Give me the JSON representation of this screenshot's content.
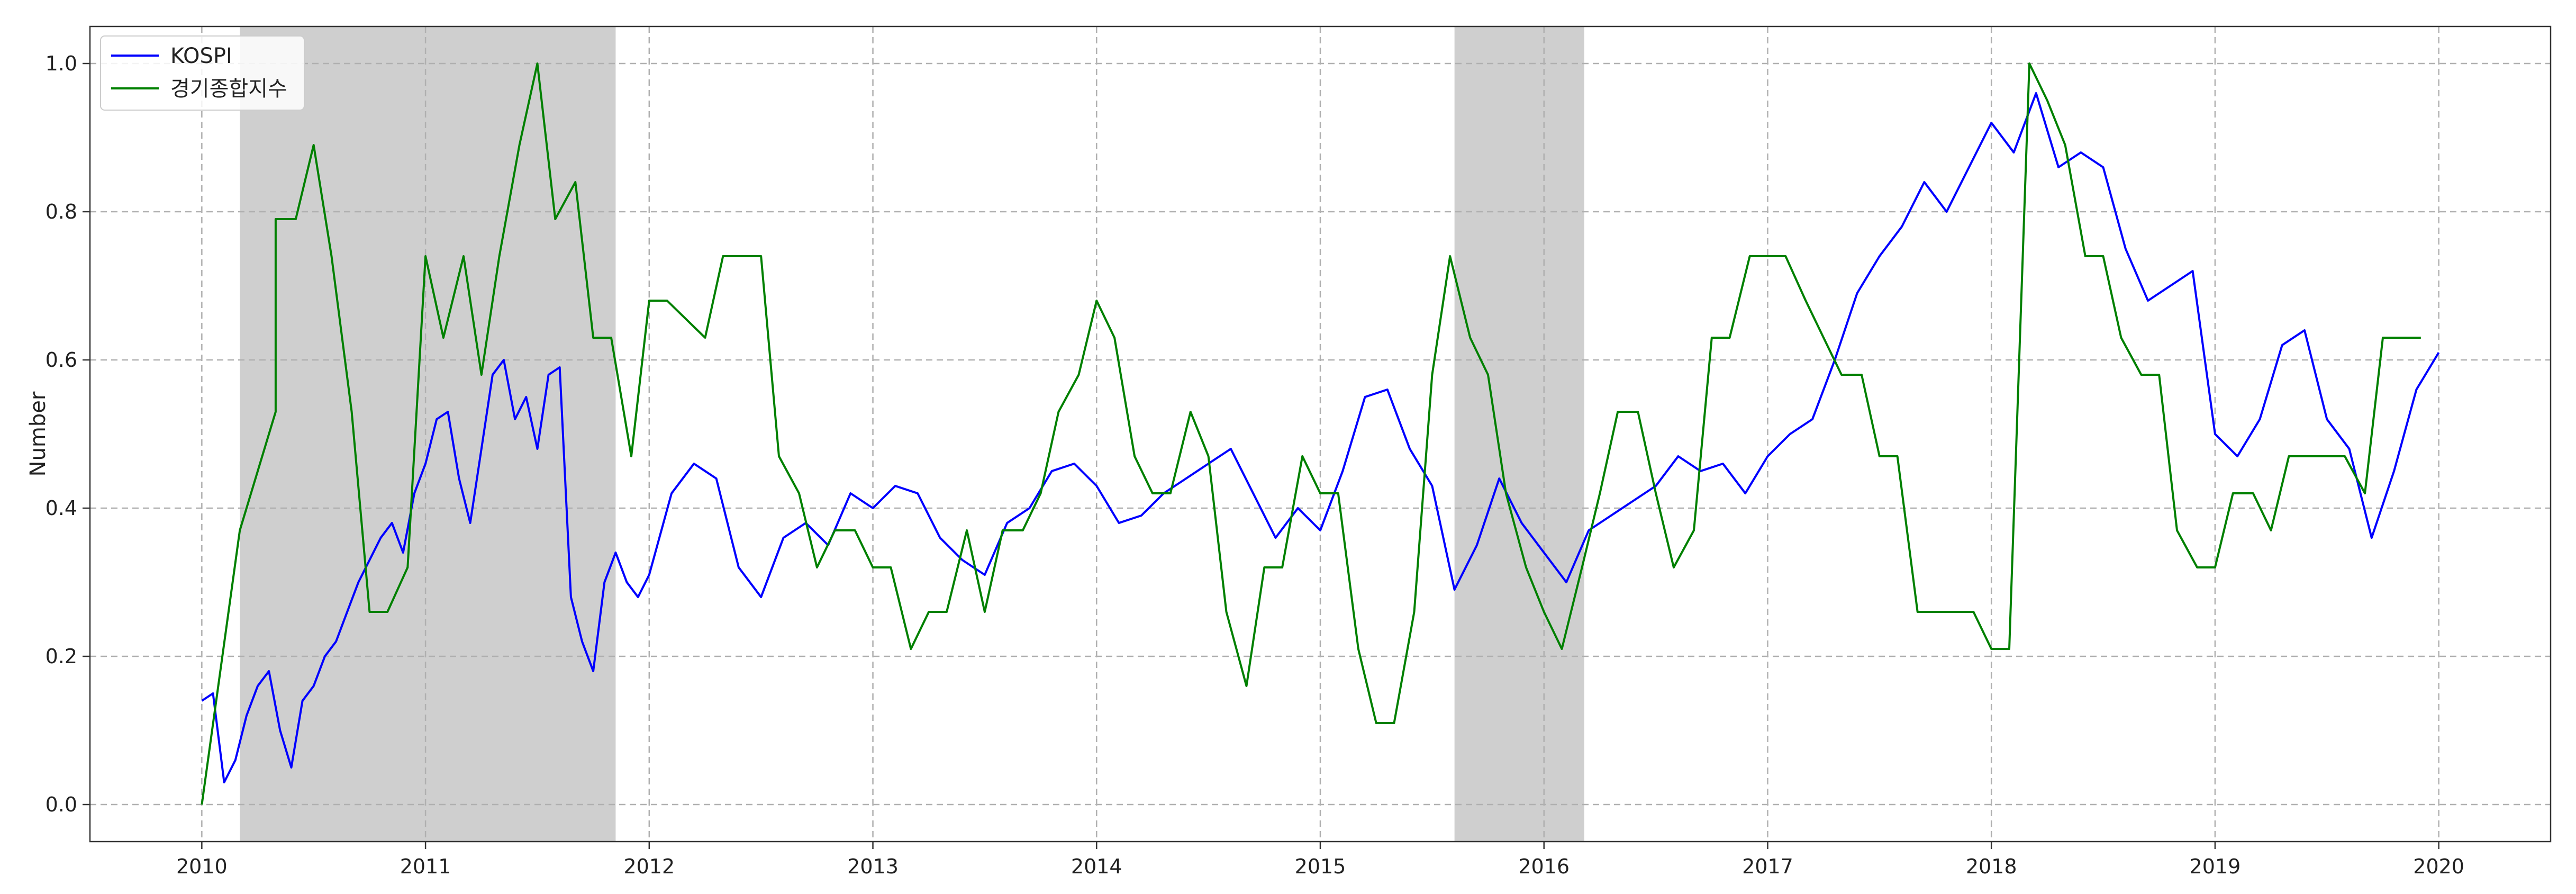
{
  "chart_data": {
    "type": "line",
    "title": "",
    "xlabel": "",
    "ylabel": "Number",
    "xlim": [
      2009.5,
      2020.5
    ],
    "ylim": [
      -0.05,
      1.05
    ],
    "x_ticks": [
      "2010",
      "2011",
      "2012",
      "2013",
      "2014",
      "2015",
      "2016",
      "2017",
      "2018",
      "2019",
      "2020"
    ],
    "y_ticks": [
      "0.0",
      "0.2",
      "0.4",
      "0.6",
      "0.8",
      "1.0"
    ],
    "grid": true,
    "legend_position": "top-left",
    "shaded_periods": [
      {
        "x": [
          2010.17,
          2011.85
        ]
      },
      {
        "x": [
          2015.6,
          2016.18
        ]
      }
    ],
    "series": [
      {
        "name": "KOSPI",
        "color": "#0000ff",
        "x": [
          2010.0,
          2010.05,
          2010.1,
          2010.15,
          2010.2,
          2010.25,
          2010.3,
          2010.35,
          2010.4,
          2010.45,
          2010.5,
          2010.55,
          2010.6,
          2010.65,
          2010.7,
          2010.75,
          2010.8,
          2010.85,
          2010.9,
          2010.95,
          2011.0,
          2011.05,
          2011.1,
          2011.15,
          2011.2,
          2011.25,
          2011.3,
          2011.35,
          2011.4,
          2011.45,
          2011.5,
          2011.55,
          2011.6,
          2011.65,
          2011.7,
          2011.75,
          2011.8,
          2011.85,
          2011.9,
          2011.95,
          2012.0,
          2012.1,
          2012.2,
          2012.3,
          2012.4,
          2012.5,
          2012.6,
          2012.7,
          2012.8,
          2012.9,
          2013.0,
          2013.1,
          2013.2,
          2013.3,
          2013.4,
          2013.5,
          2013.6,
          2013.7,
          2013.8,
          2013.9,
          2014.0,
          2014.1,
          2014.2,
          2014.3,
          2014.4,
          2014.5,
          2014.6,
          2014.7,
          2014.8,
          2014.9,
          2015.0,
          2015.1,
          2015.2,
          2015.3,
          2015.4,
          2015.5,
          2015.6,
          2015.7,
          2015.8,
          2015.9,
          2016.0,
          2016.1,
          2016.2,
          2016.3,
          2016.4,
          2016.5,
          2016.6,
          2016.7,
          2016.8,
          2016.9,
          2017.0,
          2017.1,
          2017.2,
          2017.3,
          2017.4,
          2017.5,
          2017.6,
          2017.7,
          2017.8,
          2017.9,
          2018.0,
          2018.1,
          2018.2,
          2018.3,
          2018.4,
          2018.5,
          2018.6,
          2018.7,
          2018.8,
          2018.9,
          2019.0,
          2019.1,
          2019.2,
          2019.3,
          2019.4,
          2019.5,
          2019.6,
          2019.7,
          2019.8,
          2019.9,
          2020.0
        ],
        "y": [
          0.14,
          0.15,
          0.03,
          0.06,
          0.12,
          0.16,
          0.18,
          0.1,
          0.05,
          0.14,
          0.16,
          0.2,
          0.22,
          0.26,
          0.3,
          0.33,
          0.36,
          0.38,
          0.34,
          0.42,
          0.46,
          0.52,
          0.53,
          0.44,
          0.38,
          0.48,
          0.58,
          0.6,
          0.52,
          0.55,
          0.48,
          0.58,
          0.59,
          0.28,
          0.22,
          0.18,
          0.3,
          0.34,
          0.3,
          0.28,
          0.31,
          0.42,
          0.46,
          0.44,
          0.32,
          0.28,
          0.36,
          0.38,
          0.35,
          0.42,
          0.4,
          0.43,
          0.42,
          0.36,
          0.33,
          0.31,
          0.38,
          0.4,
          0.45,
          0.46,
          0.43,
          0.38,
          0.39,
          0.42,
          0.44,
          0.46,
          0.48,
          0.42,
          0.36,
          0.4,
          0.37,
          0.45,
          0.55,
          0.56,
          0.48,
          0.43,
          0.29,
          0.35,
          0.44,
          0.38,
          0.34,
          0.3,
          0.37,
          0.39,
          0.41,
          0.43,
          0.47,
          0.45,
          0.46,
          0.42,
          0.47,
          0.5,
          0.52,
          0.6,
          0.69,
          0.74,
          0.78,
          0.84,
          0.8,
          0.86,
          0.92,
          0.88,
          0.96,
          0.86,
          0.88,
          0.86,
          0.75,
          0.68,
          0.7,
          0.72,
          0.5,
          0.47,
          0.52,
          0.62,
          0.64,
          0.52,
          0.48,
          0.36,
          0.45,
          0.56,
          0.61
        ]
      },
      {
        "name": "경기종합지수",
        "color": "#008000",
        "x": [
          2010.0,
          2010.17,
          2010.33,
          2010.33,
          2010.42,
          2010.5,
          2010.58,
          2010.67,
          2010.75,
          2010.83,
          2010.92,
          2011.0,
          2011.08,
          2011.17,
          2011.25,
          2011.33,
          2011.42,
          2011.5,
          2011.58,
          2011.67,
          2011.75,
          2011.83,
          2011.92,
          2012.0,
          2012.08,
          2012.25,
          2012.33,
          2012.5,
          2012.58,
          2012.67,
          2012.75,
          2012.83,
          2012.92,
          2013.0,
          2013.08,
          2013.17,
          2013.25,
          2013.33,
          2013.42,
          2013.5,
          2013.58,
          2013.67,
          2013.75,
          2013.83,
          2013.92,
          2014.0,
          2014.08,
          2014.17,
          2014.25,
          2014.33,
          2014.42,
          2014.5,
          2014.58,
          2014.67,
          2014.75,
          2014.83,
          2014.92,
          2015.0,
          2015.08,
          2015.17,
          2015.25,
          2015.33,
          2015.42,
          2015.5,
          2015.58,
          2015.67,
          2015.75,
          2015.83,
          2015.92,
          2016.0,
          2016.08,
          2016.17,
          2016.25,
          2016.33,
          2016.42,
          2016.5,
          2016.58,
          2016.67,
          2016.75,
          2016.83,
          2016.92,
          2017.0,
          2017.08,
          2017.17,
          2017.25,
          2017.33,
          2017.42,
          2017.5,
          2017.58,
          2017.67,
          2017.75,
          2017.83,
          2017.92,
          2018.0,
          2018.08,
          2018.17,
          2018.25,
          2018.33,
          2018.42,
          2018.5,
          2018.58,
          2018.67,
          2018.75,
          2018.83,
          2018.92,
          2019.0,
          2019.08,
          2019.17,
          2019.25,
          2019.33,
          2019.42,
          2019.5,
          2019.58,
          2019.67,
          2019.75,
          2019.83,
          2019.92
        ],
        "y": [
          0.0,
          0.37,
          0.53,
          0.79,
          0.79,
          0.89,
          0.74,
          0.53,
          0.26,
          0.26,
          0.32,
          0.74,
          0.63,
          0.74,
          0.58,
          0.74,
          0.89,
          1.0,
          0.79,
          0.84,
          0.63,
          0.63,
          0.47,
          0.68,
          0.68,
          0.63,
          0.74,
          0.74,
          0.47,
          0.42,
          0.32,
          0.37,
          0.37,
          0.32,
          0.32,
          0.21,
          0.26,
          0.26,
          0.37,
          0.26,
          0.37,
          0.37,
          0.42,
          0.53,
          0.58,
          0.68,
          0.63,
          0.47,
          0.42,
          0.42,
          0.53,
          0.47,
          0.26,
          0.16,
          0.32,
          0.32,
          0.47,
          0.42,
          0.42,
          0.21,
          0.11,
          0.11,
          0.26,
          0.58,
          0.74,
          0.63,
          0.58,
          0.42,
          0.32,
          0.26,
          0.21,
          0.32,
          0.42,
          0.53,
          0.53,
          0.42,
          0.32,
          0.37,
          0.63,
          0.63,
          0.74,
          0.74,
          0.74,
          0.68,
          0.63,
          0.58,
          0.58,
          0.47,
          0.47,
          0.26,
          0.26,
          0.26,
          0.26,
          0.21,
          0.21,
          1.0,
          0.95,
          0.89,
          0.74,
          0.74,
          0.63,
          0.58,
          0.58,
          0.37,
          0.32,
          0.32,
          0.42,
          0.42,
          0.37,
          0.47,
          0.47,
          0.47,
          0.47,
          0.42,
          0.63,
          0.63,
          0.63
        ]
      }
    ]
  }
}
